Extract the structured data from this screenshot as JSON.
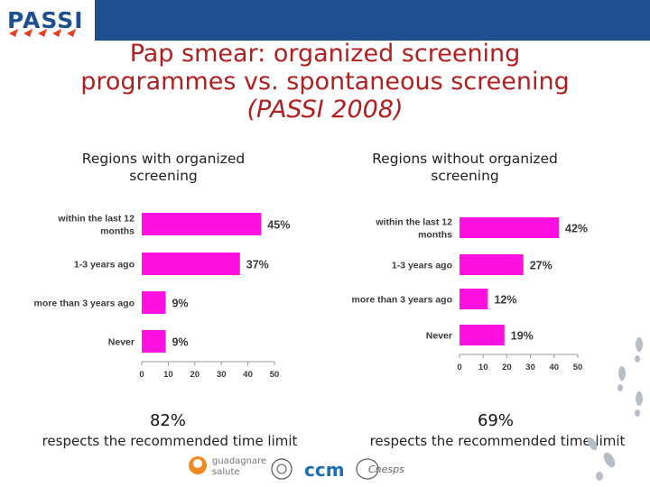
{
  "header": {
    "logo_text": "PASSI"
  },
  "title": {
    "line1": "Pap smear: organized screening",
    "line2": "programmes vs.  spontaneous screening",
    "line3": "(PASSI 2008)"
  },
  "colors": {
    "bar": "#ff10e0",
    "title": "#b02020",
    "header": "#1f4f8f"
  },
  "chart_data": [
    {
      "type": "bar",
      "orientation": "horizontal",
      "title": "Regions with organized screening",
      "categories": [
        "within the last 12 months",
        "1-3 years ago",
        "more than 3 years ago",
        "Never"
      ],
      "values": [
        45,
        37,
        9,
        9
      ],
      "value_labels": [
        "45%",
        "37%",
        "9%",
        "9%"
      ],
      "xlim": [
        0,
        50
      ],
      "xticks": [
        "0",
        "10",
        "20",
        "30",
        "40",
        "50"
      ],
      "grid": false
    },
    {
      "type": "bar",
      "orientation": "horizontal",
      "title": "Regions without organized screening",
      "categories": [
        "within the last 12 months",
        "1-3 years ago",
        "more than 3 years ago",
        "Never"
      ],
      "values": [
        42,
        27,
        12,
        19
      ],
      "value_labels": [
        "42%",
        "27%",
        "12%",
        "19%"
      ],
      "xlim": [
        0,
        50
      ],
      "xticks": [
        "0",
        "10",
        "20",
        "30",
        "40",
        "50"
      ],
      "grid": false
    }
  ],
  "summary": {
    "left_pct": "82%",
    "right_pct": "69%",
    "left_text": "respects the recommended time limit",
    "right_text": "respects the recommended time limit"
  },
  "footer": {
    "logo1_line1": "guadagnare",
    "logo1_line2": "salute",
    "logo2": "ccm",
    "logo3": "Cnesps"
  }
}
